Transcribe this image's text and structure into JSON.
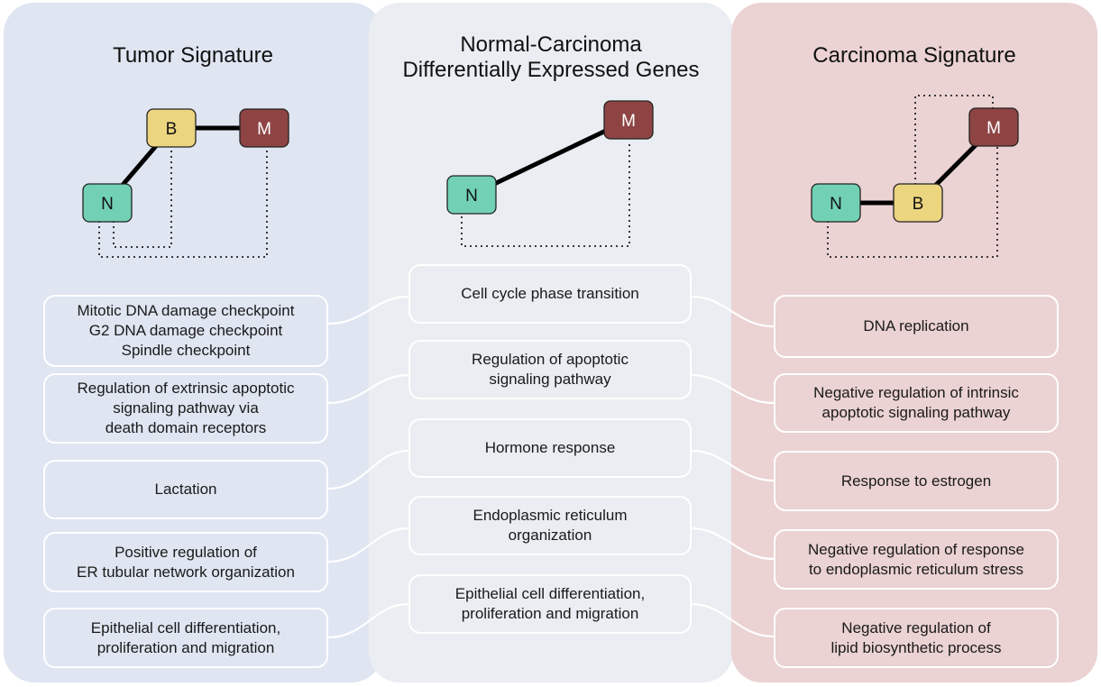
{
  "panels": {
    "left": {
      "title": "Tumor Signature"
    },
    "middle": {
      "title_line1": "Normal-Carcinoma",
      "title_line2": "Differentially Expressed Genes"
    },
    "right": {
      "title": "Carcinoma Signature"
    }
  },
  "nodes": {
    "N": "N",
    "B": "B",
    "M": "M"
  },
  "colors": {
    "N": "#72d1b4",
    "B": "#ecd57f",
    "M": "#8f4444"
  },
  "left_terms": [
    "Mitotic DNA damage checkpoint\nG2 DNA damage checkpoint\nSpindle checkpoint",
    "Regulation of extrinsic apoptotic\nsignaling pathway via\ndeath domain receptors",
    "Lactation",
    "Positive regulation of\nER tubular network organization",
    "Epithelial cell differentiation,\nproliferation and migration"
  ],
  "middle_terms": [
    "Cell cycle phase transition",
    "Regulation of apoptotic\nsignaling pathway",
    "Hormone response",
    "Endoplasmic reticulum\norganization",
    "Epithelial cell differentiation,\nproliferation and migration"
  ],
  "right_terms": [
    "DNA replication",
    "Negative regulation of intrinsic\napoptotic signaling pathway",
    "Response to estrogen",
    "Negative regulation of response\nto endoplasmic reticulum stress",
    "Negative regulation of\nlipid biosynthetic process"
  ]
}
